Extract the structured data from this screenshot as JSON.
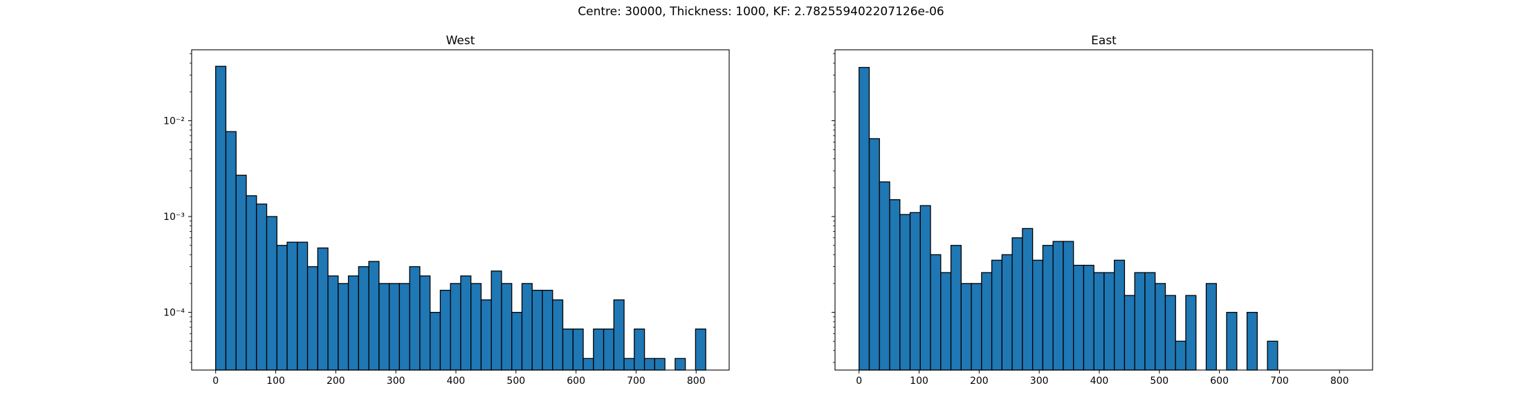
{
  "figure": {
    "title": "Centre: 30000, Thickness: 1000, KF: 2.782559402207126e-06"
  },
  "chart_data": [
    {
      "type": "bar",
      "title": "West",
      "yscale": "log",
      "ylim": [
        2.5e-05,
        0.055
      ],
      "xlim": [
        -40,
        855
      ],
      "xticks": [
        0,
        100,
        200,
        300,
        400,
        500,
        600,
        700,
        800
      ],
      "yticks": [
        0.0001,
        0.001,
        0.01
      ],
      "ytick_labels": [
        "10⁻⁴",
        "10⁻³",
        "10⁻²"
      ],
      "bin_start": 0,
      "bin_width": 17,
      "values": [
        0.037,
        0.0077,
        0.0027,
        0.00165,
        0.00135,
        0.001,
        0.0005,
        0.00054,
        0.00054,
        0.0003,
        0.00047,
        0.00024,
        0.0002,
        0.00024,
        0.0003,
        0.00034,
        0.0002,
        0.0002,
        0.0002,
        0.0003,
        0.00024,
        0.0001,
        0.00017,
        0.0002,
        0.00024,
        0.0002,
        0.000135,
        0.00027,
        0.0002,
        0.0001,
        0.0002,
        0.00017,
        0.00017,
        0.000135,
        6.7e-05,
        6.7e-05,
        3.3e-05,
        6.7e-05,
        6.7e-05,
        0.000135,
        3.3e-05,
        6.7e-05,
        3.3e-05,
        3.3e-05,
        0,
        3.3e-05,
        0,
        6.7e-05
      ],
      "color": "#1f77b4",
      "edgecolor": "#000000"
    },
    {
      "type": "bar",
      "title": "East",
      "yscale": "log",
      "ylim": [
        2.5e-05,
        0.055
      ],
      "xlim": [
        -40,
        855
      ],
      "xticks": [
        0,
        100,
        200,
        300,
        400,
        500,
        600,
        700,
        800
      ],
      "bin_start": 0,
      "bin_width": 17,
      "values": [
        0.036,
        0.0065,
        0.0023,
        0.0015,
        0.00105,
        0.0011,
        0.0013,
        0.0004,
        0.00026,
        0.0005,
        0.0002,
        0.0002,
        0.00026,
        0.00035,
        0.0004,
        0.0006,
        0.00075,
        0.00035,
        0.0005,
        0.00055,
        0.00055,
        0.00031,
        0.00031,
        0.00026,
        0.00026,
        0.00035,
        0.00015,
        0.00026,
        0.00026,
        0.0002,
        0.00015,
        5e-05,
        0.00015,
        0,
        0.0002,
        0,
        0.0001,
        0,
        0.0001,
        0,
        5e-05,
        0,
        0,
        0,
        0,
        0,
        0,
        0
      ],
      "color": "#1f77b4",
      "edgecolor": "#000000"
    }
  ]
}
